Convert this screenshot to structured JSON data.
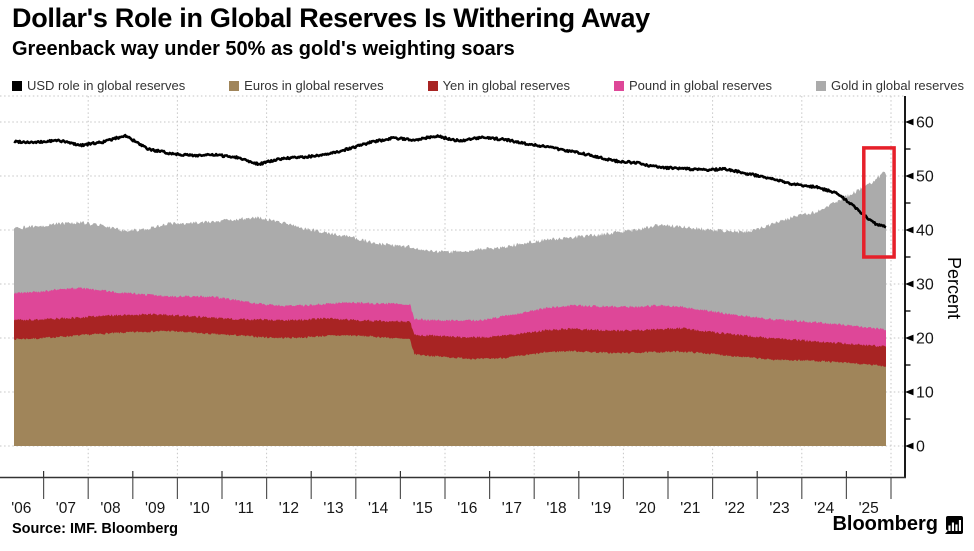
{
  "header": {
    "title": "Dollar's Role in Global Reserves Is Withering Away",
    "subtitle": "Greenback way under 50% as gold's weighting soars"
  },
  "legend": {
    "items": [
      {
        "label": "USD role in global reserves",
        "color": "#000000"
      },
      {
        "label": "Euros in global reserves",
        "color": "#a0855a"
      },
      {
        "label": "Yen in global reserves",
        "color": "#a82423"
      },
      {
        "label": "Pound in global reserves",
        "color": "#de4798"
      },
      {
        "label": "Gold in global reserves",
        "color": "#ababab"
      }
    ]
  },
  "chart_data": {
    "type": "area",
    "title": "Dollar's Role in Global Reserves Is Withering Away",
    "subtitle": "Greenback way under 50% as gold's weighting soars",
    "note": "Stacked areas (Euros, Yen, Pound, Gold) given as cumulative stack-top percentages; USD is a separate line series. X is year (fractional).",
    "x": [
      2006.0,
      2006.5,
      2007.0,
      2007.5,
      2008.0,
      2008.5,
      2009.0,
      2009.5,
      2010.0,
      2010.5,
      2011.0,
      2011.5,
      2012.0,
      2012.5,
      2013.0,
      2013.5,
      2014.0,
      2014.5,
      2014.9,
      2015.0,
      2015.5,
      2016.0,
      2016.5,
      2017.0,
      2017.5,
      2018.0,
      2018.5,
      2019.0,
      2019.5,
      2020.0,
      2020.5,
      2021.0,
      2021.5,
      2022.0,
      2022.5,
      2023.0,
      2023.5,
      2024.0,
      2024.5,
      2024.9,
      2025.1,
      2025.3,
      2025.45,
      2025.55,
      2025.6
    ],
    "series": [
      {
        "name": "Euros in global reserves",
        "role": "stacked-area",
        "color": "#a0855a",
        "cumulative_top": [
          19.8,
          19.9,
          20.2,
          20.5,
          20.8,
          21.0,
          21.2,
          21.3,
          21.0,
          20.7,
          20.5,
          20.2,
          20.0,
          20.1,
          20.4,
          20.5,
          20.3,
          20.0,
          19.7,
          17.0,
          16.6,
          16.3,
          16.1,
          16.3,
          16.8,
          17.4,
          17.6,
          17.4,
          17.2,
          17.3,
          17.4,
          17.5,
          17.2,
          16.8,
          16.4,
          16.0,
          15.9,
          15.8,
          15.5,
          15.3,
          15.1,
          15.0,
          14.9,
          14.8,
          14.7
        ]
      },
      {
        "name": "Yen in global reserves",
        "role": "stacked-area",
        "color": "#a82423",
        "cumulative_top": [
          23.4,
          23.4,
          23.6,
          23.8,
          24.1,
          24.3,
          24.4,
          24.3,
          24.0,
          23.7,
          23.5,
          23.4,
          23.3,
          23.4,
          23.6,
          23.4,
          23.2,
          23.1,
          23.0,
          20.6,
          20.4,
          20.2,
          20.1,
          20.4,
          20.9,
          21.5,
          21.7,
          21.5,
          21.3,
          21.4,
          21.6,
          21.8,
          21.3,
          20.8,
          20.4,
          20.0,
          19.7,
          19.4,
          19.1,
          18.9,
          18.7,
          18.6,
          18.5,
          18.5,
          18.4
        ]
      },
      {
        "name": "Pound in global reserves",
        "role": "stacked-area",
        "color": "#de4798",
        "cumulative_top": [
          28.3,
          28.5,
          29.0,
          29.2,
          28.8,
          28.3,
          28.0,
          27.7,
          27.7,
          27.6,
          27.0,
          26.3,
          26.0,
          26.0,
          26.3,
          26.6,
          26.4,
          26.3,
          26.2,
          23.5,
          23.3,
          23.2,
          23.3,
          24.0,
          24.8,
          25.6,
          26.0,
          25.9,
          25.8,
          25.8,
          26.0,
          25.8,
          25.2,
          24.5,
          24.0,
          23.5,
          23.2,
          22.9,
          22.6,
          22.2,
          22.0,
          21.8,
          21.7,
          21.6,
          21.5
        ]
      },
      {
        "name": "Gold in global reserves",
        "role": "stacked-area",
        "color": "#ababab",
        "cumulative_top": [
          40.3,
          40.7,
          41.2,
          41.4,
          40.8,
          39.8,
          40.2,
          41.2,
          41.3,
          41.5,
          42.0,
          42.3,
          41.4,
          40.3,
          39.6,
          38.8,
          37.8,
          37.1,
          36.9,
          36.5,
          36.0,
          35.9,
          36.5,
          36.8,
          37.6,
          38.2,
          38.5,
          39.0,
          39.5,
          40.0,
          41.0,
          40.6,
          40.2,
          39.8,
          39.6,
          41.0,
          42.4,
          43.3,
          45.3,
          47.0,
          48.0,
          48.8,
          49.9,
          50.6,
          50.2
        ]
      },
      {
        "name": "USD role in global reserves",
        "role": "line",
        "color": "#000000",
        "values": [
          56.4,
          56.2,
          56.6,
          55.7,
          56.3,
          57.5,
          55.0,
          54.2,
          53.8,
          53.9,
          53.5,
          52.2,
          53.2,
          53.5,
          53.9,
          55.0,
          56.2,
          57.0,
          56.8,
          56.7,
          57.4,
          56.5,
          57.1,
          56.8,
          56.0,
          55.4,
          54.6,
          53.8,
          52.8,
          52.4,
          51.6,
          51.4,
          51.1,
          51.3,
          50.4,
          49.6,
          48.5,
          48.0,
          46.8,
          44.3,
          42.8,
          41.4,
          40.9,
          40.7,
          40.5
        ]
      }
    ],
    "xlabel": "",
    "ylabel": "Percent",
    "ylim": [
      0,
      60
    ],
    "y_ticks": [
      0,
      10,
      20,
      30,
      40,
      50,
      60
    ],
    "y_minor_tick_step": 5,
    "x_tick_labels": [
      "'06",
      "'07",
      "'08",
      "'09",
      "'10",
      "'11",
      "'12",
      "'13",
      "'14",
      "'15",
      "'16",
      "'17",
      "'18",
      "'19",
      "'20",
      "'21",
      "'22",
      "'23",
      "'24",
      "'25"
    ],
    "grid": "dotted",
    "legend_position": "top",
    "annotation_box": {
      "x1": 2025.1,
      "x2": 2025.78,
      "y1": 35.0,
      "y2": 55.2,
      "color": "#e6202a"
    }
  },
  "footer": {
    "source": "Source: IMF. Bloomberg",
    "brand": "Bloomberg"
  }
}
